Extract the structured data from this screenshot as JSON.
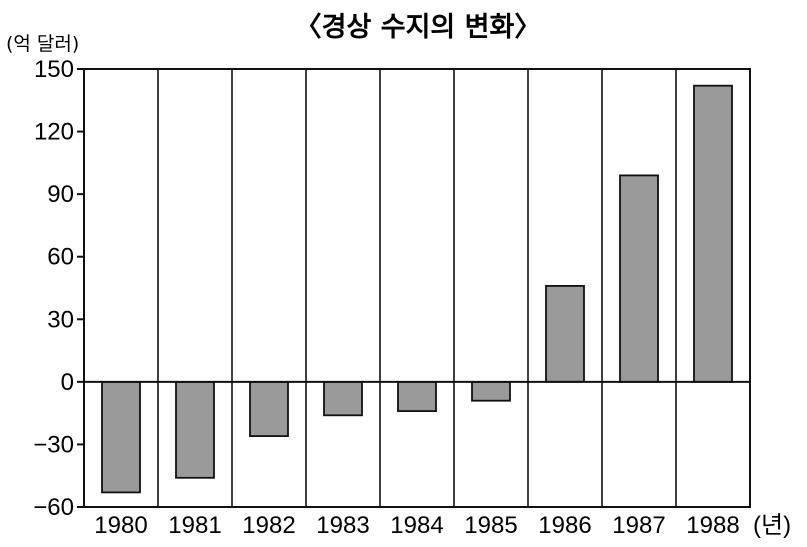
{
  "chart_data": {
    "type": "bar",
    "title": "〈경상 수지의 변화〉",
    "ylabel": "(억 달러)",
    "xlabel": "(년)",
    "categories": [
      "1980",
      "1981",
      "1982",
      "1983",
      "1984",
      "1985",
      "1986",
      "1987",
      "1988"
    ],
    "values": [
      -53,
      -46,
      -26,
      -16,
      -14,
      -9,
      46,
      99,
      142
    ],
    "ylim": [
      -60,
      150
    ],
    "yticks": [
      150,
      120,
      90,
      60,
      30,
      0,
      -30,
      -60
    ],
    "ytick_labels": [
      "150",
      "120",
      "90",
      "60",
      "30",
      "0",
      "−30",
      "−60"
    ],
    "grid": "vertical separators between categories",
    "bar_color": "#9a9a9a",
    "line_color": "#111111"
  }
}
